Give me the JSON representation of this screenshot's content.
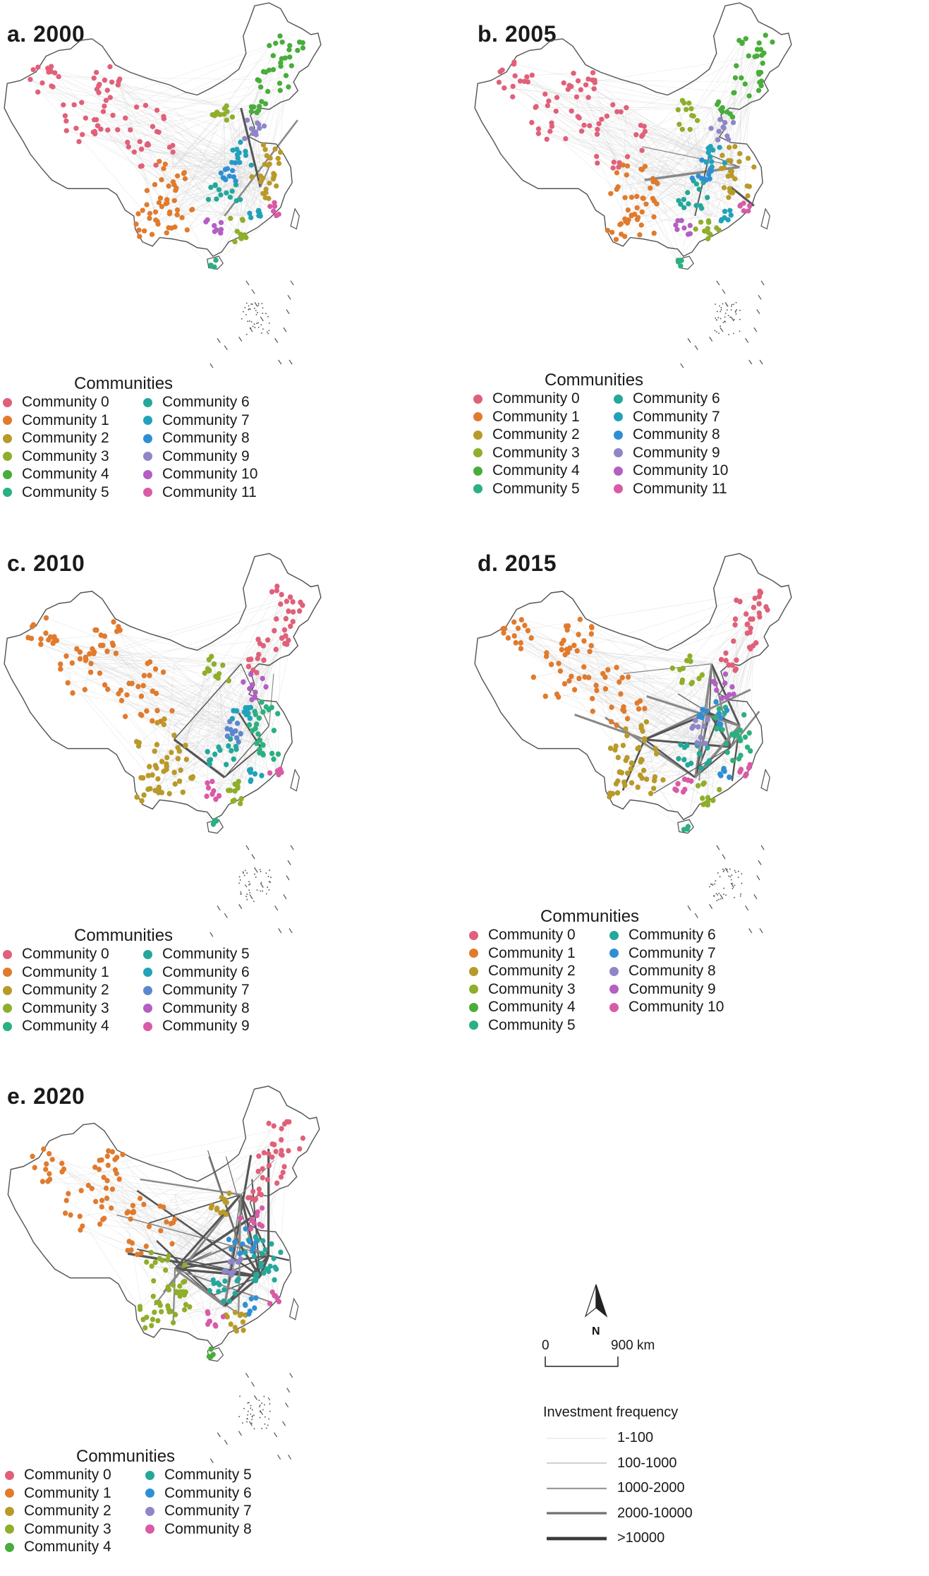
{
  "panels": [
    {
      "title": "a. 2000",
      "legend_title": "Communities",
      "communities": [
        "Community 0",
        "Community 1",
        "Community 2",
        "Community 3",
        "Community 4",
        "Community 5",
        "Community 6",
        "Community 7",
        "Community 8",
        "Community 9",
        "Community 10",
        "Community 11"
      ],
      "colors": [
        "#e0607a",
        "#e07b2e",
        "#b89a2a",
        "#8fae2a",
        "#48ad3a",
        "#2bb07f",
        "#23a89a",
        "#21a2b8",
        "#2f8fd4",
        "#8f86c8",
        "#b35fc3",
        "#d95aa6"
      ]
    },
    {
      "title": "b. 2005",
      "legend_title": "Communities",
      "communities": [
        "Community 0",
        "Community 1",
        "Community 2",
        "Community 3",
        "Community 4",
        "Community 5",
        "Community 6",
        "Community 7",
        "Community 8",
        "Community 9",
        "Community 10",
        "Community 11"
      ],
      "colors": [
        "#e0607a",
        "#e07b2e",
        "#b89a2a",
        "#8fae2a",
        "#48ad3a",
        "#2bb07f",
        "#23a89a",
        "#21a2b8",
        "#2f8fd4",
        "#8f86c8",
        "#b35fc3",
        "#d95aa6"
      ]
    },
    {
      "title": "c. 2010",
      "legend_title": "Communities",
      "communities": [
        "Community 0",
        "Community 1",
        "Community 2",
        "Community 3",
        "Community 4",
        "Community 5",
        "Community 6",
        "Community 7",
        "Community 8",
        "Community 9"
      ],
      "colors": [
        "#e0607a",
        "#e07b2e",
        "#b89a2a",
        "#8fae2a",
        "#2bb07f",
        "#23a89a",
        "#21a2b8",
        "#5b87cf",
        "#b35fc3",
        "#d95aa6"
      ]
    },
    {
      "title": "d. 2015",
      "legend_title": "Communities",
      "communities": [
        "Community 0",
        "Community 1",
        "Community 2",
        "Community 3",
        "Community 4",
        "Community 5",
        "Community 6",
        "Community 7",
        "Community 8",
        "Community 9",
        "Community 10"
      ],
      "colors": [
        "#e0607a",
        "#e07b2e",
        "#b89a2a",
        "#8fae2a",
        "#48ad3a",
        "#2bb07f",
        "#23a89a",
        "#2f8fd4",
        "#8f86c8",
        "#b35fc3",
        "#d95aa6"
      ]
    },
    {
      "title": "e. 2020",
      "legend_title": "Communities",
      "communities": [
        "Community 0",
        "Community 1",
        "Community 2",
        "Community 3",
        "Community 4",
        "Community 5",
        "Community 6",
        "Community 7",
        "Community 8"
      ],
      "colors": [
        "#e0607a",
        "#e07b2e",
        "#b89a2a",
        "#8fae2a",
        "#48ad3a",
        "#23a89a",
        "#2f8fd4",
        "#8f86c8",
        "#d95aa6"
      ]
    }
  ],
  "north_label": "N",
  "scale": {
    "start": "0",
    "end": "900 km"
  },
  "frequency_legend": {
    "title": "Investment frequency",
    "items": [
      {
        "label": "1-100",
        "color": "#d8d8d8"
      },
      {
        "label": "100-1000",
        "color": "#b5b5b5"
      },
      {
        "label": "1000-2000",
        "color": "#999999"
      },
      {
        "label": "2000-10000",
        "color": "#707070"
      },
      {
        "label": ">10000",
        "color": "#3a3a3a"
      }
    ]
  }
}
